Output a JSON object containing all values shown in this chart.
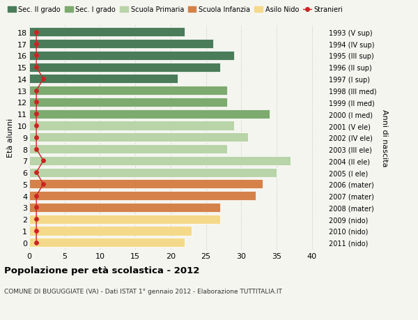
{
  "ages": [
    18,
    17,
    16,
    15,
    14,
    13,
    12,
    11,
    10,
    9,
    8,
    7,
    6,
    5,
    4,
    3,
    2,
    1,
    0
  ],
  "years": [
    "1993 (V sup)",
    "1994 (IV sup)",
    "1995 (III sup)",
    "1996 (II sup)",
    "1997 (I sup)",
    "1998 (III med)",
    "1999 (II med)",
    "2000 (I med)",
    "2001 (V ele)",
    "2002 (IV ele)",
    "2003 (III ele)",
    "2004 (II ele)",
    "2005 (I ele)",
    "2006 (mater)",
    "2007 (mater)",
    "2008 (mater)",
    "2009 (nido)",
    "2010 (nido)",
    "2011 (nido)"
  ],
  "bar_values": [
    22,
    26,
    29,
    27,
    21,
    28,
    28,
    34,
    29,
    31,
    28,
    37,
    35,
    33,
    32,
    27,
    27,
    23,
    22
  ],
  "bar_colors": [
    "#4a7c59",
    "#4a7c59",
    "#4a7c59",
    "#4a7c59",
    "#4a7c59",
    "#7daa6f",
    "#7daa6f",
    "#7daa6f",
    "#b8d4a8",
    "#b8d4a8",
    "#b8d4a8",
    "#b8d4a8",
    "#b8d4a8",
    "#d4824a",
    "#d4824a",
    "#d4824a",
    "#f5d98a",
    "#f5d98a",
    "#f5d98a"
  ],
  "legend_labels": [
    "Sec. II grado",
    "Sec. I grado",
    "Scuola Primaria",
    "Scuola Infanzia",
    "Asilo Nido",
    "Stranieri"
  ],
  "legend_colors": [
    "#4a7c59",
    "#7daa6f",
    "#b8d4a8",
    "#d4824a",
    "#f5d98a",
    "#cc2222"
  ],
  "ylabel_left": "Età alunni",
  "ylabel_right": "Anni di nascita",
  "xlim": [
    0,
    42
  ],
  "xticks": [
    0,
    5,
    10,
    15,
    20,
    25,
    30,
    35,
    40
  ],
  "title": "Popolazione per età scolastica - 2012",
  "subtitle": "COMUNE DI BUGUGGIATE (VA) - Dati ISTAT 1° gennaio 2012 - Elaborazione TUTTITALIA.IT",
  "bg_color": "#f5f5f0",
  "stranieri_color": "#cc2222",
  "stranieri_x_values": [
    1,
    1,
    1,
    1,
    2,
    1,
    1,
    1,
    1,
    1,
    1,
    2,
    1,
    2,
    1,
    1,
    1,
    1,
    1
  ]
}
